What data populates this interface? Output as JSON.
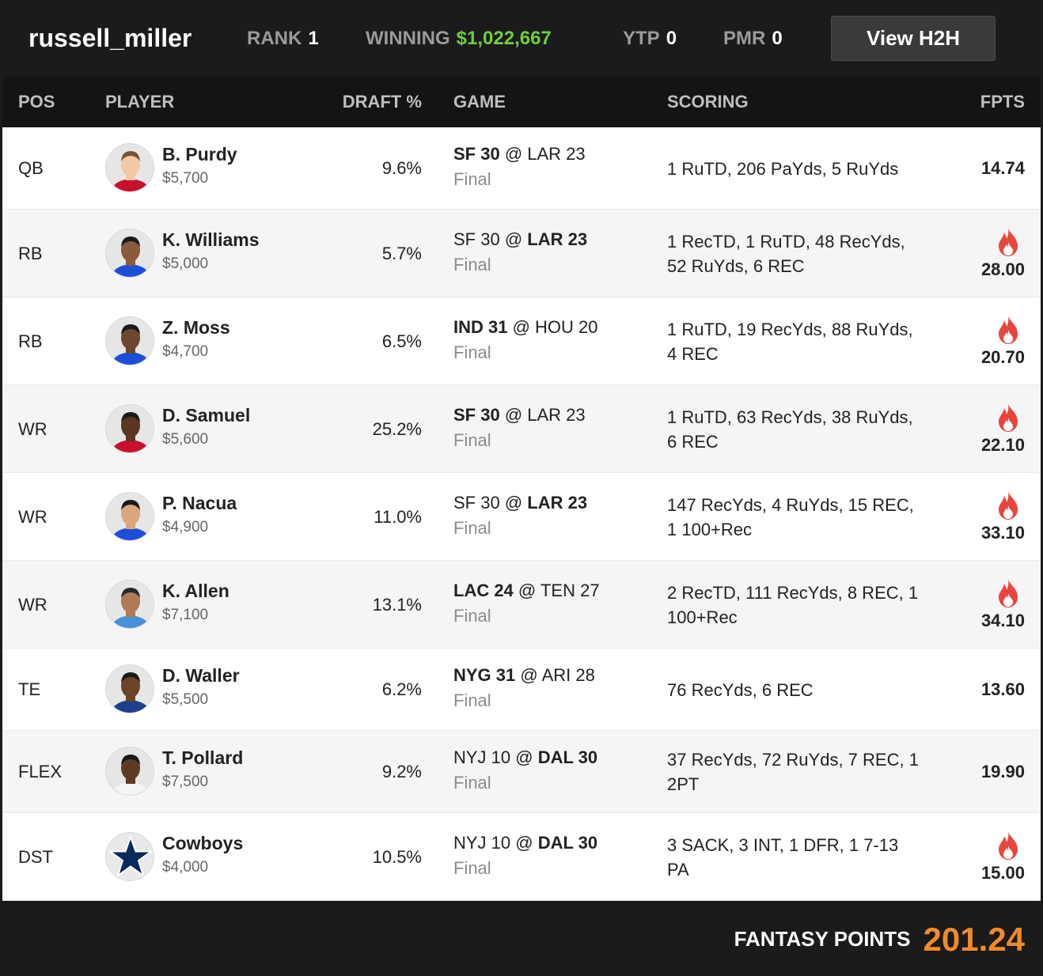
{
  "header": {
    "username": "russell_miller",
    "rank_label": "RANK",
    "rank_value": "1",
    "winning_label": "WINNING",
    "winning_value": "$1,022,667",
    "ytp_label": "YTP",
    "ytp_value": "0",
    "pmr_label": "PMR",
    "pmr_value": "0",
    "h2h_button": "View H2H"
  },
  "columns": {
    "pos": "POS",
    "player": "PLAYER",
    "draft": "DRAFT %",
    "game": "GAME",
    "scoring": "SCORING",
    "fpts": "FPTS"
  },
  "rows": [
    {
      "pos": "QB",
      "name": "B. Purdy",
      "salary": "$5,700",
      "draft": "9.6%",
      "away": "SF 30",
      "at": "@",
      "home": "LAR 23",
      "bold": "away",
      "status": "Final",
      "scoring": "1 RuTD, 206 PaYds, 5 RuYds",
      "fpts": "14.74",
      "hot": false,
      "jersey": "#c8102e",
      "skin": "#f2c9a5",
      "hair": "#7a5230"
    },
    {
      "pos": "RB",
      "name": "K. Williams",
      "salary": "$5,000",
      "draft": "5.7%",
      "away": "SF 30",
      "at": "@",
      "home": "LAR 23",
      "bold": "home",
      "status": "Final",
      "scoring": "1 RecTD, 1 RuTD, 48 RecYds, 52 RuYds, 6 REC",
      "fpts": "28.00",
      "hot": true,
      "jersey": "#1d4ed8",
      "skin": "#8a5a3c",
      "hair": "#1a1a1a"
    },
    {
      "pos": "RB",
      "name": "Z. Moss",
      "salary": "$4,700",
      "draft": "6.5%",
      "away": "IND 31",
      "at": "@",
      "home": "HOU 20",
      "bold": "away",
      "status": "Final",
      "scoring": "1 RuTD, 19 RecYds, 88 RuYds, 4 REC",
      "fpts": "20.70",
      "hot": true,
      "jersey": "#1d4ed8",
      "skin": "#6e4630",
      "hair": "#1a1a1a"
    },
    {
      "pos": "WR",
      "name": "D. Samuel",
      "salary": "$5,600",
      "draft": "25.2%",
      "away": "SF 30",
      "at": "@",
      "home": "LAR 23",
      "bold": "away",
      "status": "Final",
      "scoring": "1 RuTD, 63 RecYds, 38 RuYds, 6 REC",
      "fpts": "22.10",
      "hot": true,
      "jersey": "#c8102e",
      "skin": "#5a3623",
      "hair": "#1a1a1a"
    },
    {
      "pos": "WR",
      "name": "P. Nacua",
      "salary": "$4,900",
      "draft": "11.0%",
      "away": "SF 30",
      "at": "@",
      "home": "LAR 23",
      "bold": "home",
      "status": "Final",
      "scoring": "147 RecYds, 4 RuYds, 15 REC, 1 100+Rec",
      "fpts": "33.10",
      "hot": true,
      "jersey": "#1d4ed8",
      "skin": "#d9a67e",
      "hair": "#1a1a1a"
    },
    {
      "pos": "WR",
      "name": "K. Allen",
      "salary": "$7,100",
      "draft": "13.1%",
      "away": "LAC 24",
      "at": "@",
      "home": "TEN 27",
      "bold": "away",
      "status": "Final",
      "scoring": "2 RecTD, 111 RecYds, 8 REC, 1 100+Rec",
      "fpts": "34.10",
      "hot": true,
      "jersey": "#4a90d9",
      "skin": "#b07a56",
      "hair": "#2a2a2a"
    },
    {
      "pos": "TE",
      "name": "D. Waller",
      "salary": "$5,500",
      "draft": "6.2%",
      "away": "NYG 31",
      "at": "@",
      "home": "ARI 28",
      "bold": "away",
      "status": "Final",
      "scoring": "76 RecYds, 6 REC",
      "fpts": "13.60",
      "hot": false,
      "jersey": "#1d3f8c",
      "skin": "#6a4329",
      "hair": "#1a1a1a"
    },
    {
      "pos": "FLEX",
      "name": "T. Pollard",
      "salary": "$7,500",
      "draft": "9.2%",
      "away": "NYJ 10",
      "at": "@",
      "home": "DAL 30",
      "bold": "home",
      "status": "Final",
      "scoring": "37 RecYds, 72 RuYds, 7 REC, 1 2PT",
      "fpts": "19.90",
      "hot": false,
      "jersey": "#f4f4f4",
      "skin": "#5e3a25",
      "hair": "#1a1a1a"
    },
    {
      "pos": "DST",
      "name": "Cowboys",
      "salary": "$4,000",
      "draft": "10.5%",
      "away": "NYJ 10",
      "at": "@",
      "home": "DAL 30",
      "bold": "home",
      "status": "Final",
      "scoring": "3 SACK, 3 INT, 1 DFR, 1 7-13 PA",
      "fpts": "15.00",
      "hot": true,
      "jersey": "#0b2a5c",
      "skin": "#0b2a5c",
      "hair": "#0b2a5c",
      "logo": "star"
    }
  ],
  "footer": {
    "label": "FANTASY POINTS",
    "total": "201.24"
  },
  "colors": {
    "background": "#1b1b1b",
    "accent_green": "#6fcf3d",
    "accent_orange": "#f08a2a",
    "fire": "#e9453f"
  },
  "icons": [
    "player-avatar",
    "fire-icon",
    "cowboys-star-logo"
  ]
}
